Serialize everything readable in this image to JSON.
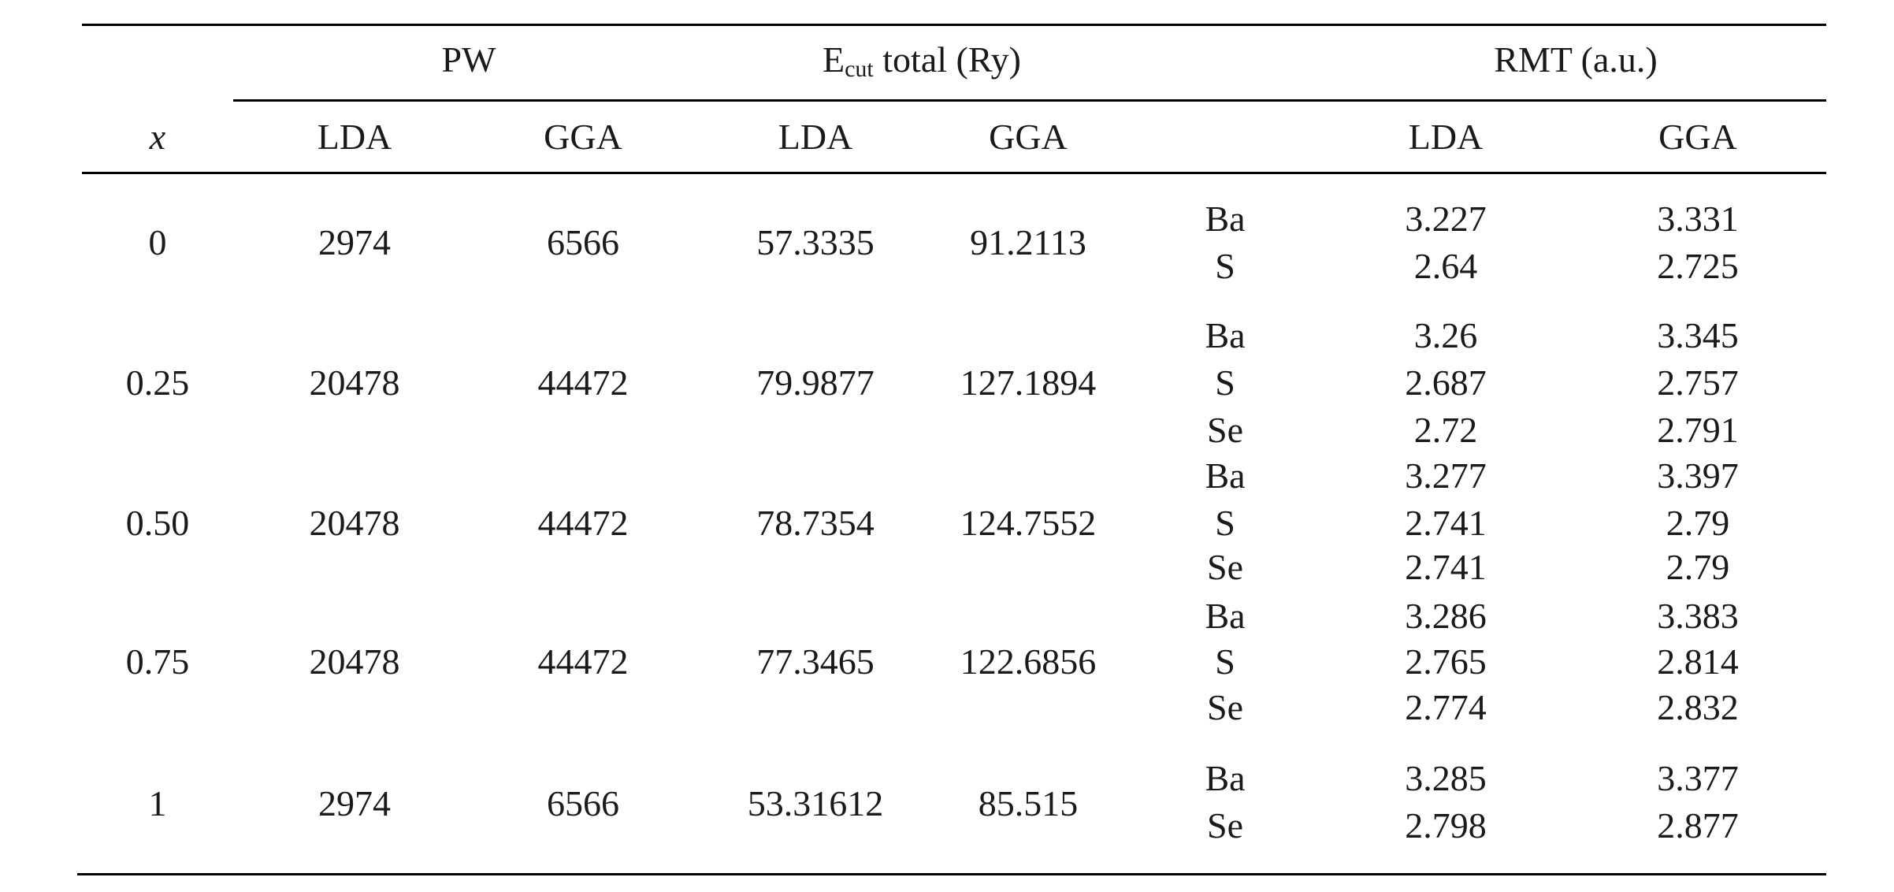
{
  "header": {
    "pw": "PW",
    "ecut_main": "E",
    "ecut_sub": "cut",
    "ecut_rest": " total (Ry)",
    "rmt": "RMT (a.u.)",
    "x": "x",
    "pw_lda": "LDA",
    "pw_gga": "GGA",
    "ecut_lda": "LDA",
    "ecut_gga": "GGA",
    "rmt_lda": "LDA",
    "rmt_gga": "GGA"
  },
  "rows": [
    {
      "x": "0",
      "pw_lda": "2974",
      "pw_gga": "6566",
      "ecut_lda": "57.3335",
      "ecut_gga": "91.2113",
      "atoms": [
        {
          "atom": "Ba",
          "lda": "3.227",
          "gga": "3.331"
        },
        {
          "atom": "S",
          "lda": "2.64",
          "gga": "2.725"
        }
      ]
    },
    {
      "x": "0.25",
      "pw_lda": "20478",
      "pw_gga": "44472",
      "ecut_lda": "79.9877",
      "ecut_gga": "127.1894",
      "atoms": [
        {
          "atom": "Ba",
          "lda": "3.26",
          "gga": "3.345"
        },
        {
          "atom": "S",
          "lda": "2.687",
          "gga": "2.757"
        },
        {
          "atom": "Se",
          "lda": "2.72",
          "gga": "2.791"
        }
      ]
    },
    {
      "x": "0.50",
      "pw_lda": "20478",
      "pw_gga": "44472",
      "ecut_lda": "78.7354",
      "ecut_gga": "124.7552",
      "atoms": [
        {
          "atom": "Ba",
          "lda": "3.277",
          "gga": "3.397"
        },
        {
          "atom": "S",
          "lda": "2.741",
          "gga": "2.79"
        },
        {
          "atom": "Se",
          "lda": "2.741",
          "gga": "2.79"
        }
      ]
    },
    {
      "x": "0.75",
      "pw_lda": "20478",
      "pw_gga": "44472",
      "ecut_lda": "77.3465",
      "ecut_gga": "122.6856",
      "atoms": [
        {
          "atom": "Ba",
          "lda": "3.286",
          "gga": "3.383"
        },
        {
          "atom": "S",
          "lda": "2.765",
          "gga": "2.814"
        },
        {
          "atom": "Se",
          "lda": "2.774",
          "gga": "2.832"
        }
      ]
    },
    {
      "x": "1",
      "pw_lda": "2974",
      "pw_gga": "6566",
      "ecut_lda": "53.31612",
      "ecut_gga": "85.515",
      "atoms": [
        {
          "atom": "Ba",
          "lda": "3.285",
          "gga": "3.377"
        },
        {
          "atom": "Se",
          "lda": "2.798",
          "gga": "2.877"
        }
      ]
    }
  ]
}
